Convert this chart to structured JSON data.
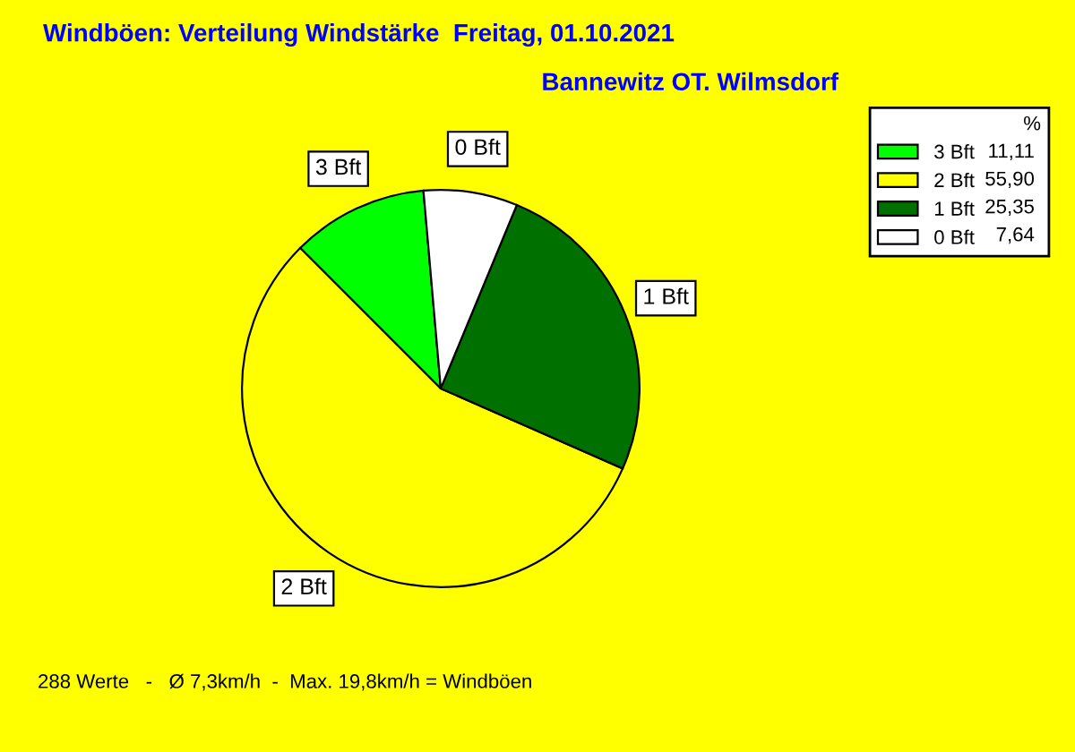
{
  "chart_data": {
    "type": "pie",
    "title": "Windböen: Verteilung Windstärke  Freitag, 01.10.2021",
    "subtitle": "Bannewitz OT. Wilmsdorf",
    "categories": [
      "3 Bft",
      "2 Bft",
      "1 Bft",
      "0 Bft"
    ],
    "values": [
      11.11,
      55.9,
      25.35,
      7.64
    ],
    "value_labels": [
      "11,11",
      "55,90",
      "25,35",
      "7,64"
    ],
    "colors": [
      "#00ff00",
      "#ffff00",
      "#007000",
      "#ffffff"
    ],
    "legend": "top right",
    "legend_title": "%",
    "annotations": [
      "288 Werte   -   Ø 7,3km/h  -  Max. 19,8km/h = Windböen"
    ]
  }
}
